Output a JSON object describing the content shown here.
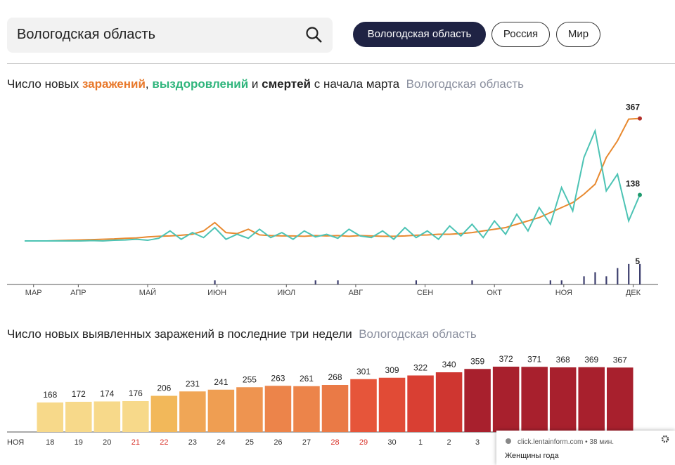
{
  "search": {
    "query": "Вологодская область"
  },
  "tabs": [
    "Вологодская область",
    "Россия",
    "Мир"
  ],
  "chart_data": [
    {
      "type": "line",
      "title_parts": [
        "Число новых ",
        ", ",
        " и ",
        " с начала марта"
      ],
      "subtitle": "Вологодская область",
      "x": [
        0,
        5,
        10,
        15,
        20,
        25,
        30,
        35,
        40,
        45,
        50,
        55,
        60,
        65,
        70,
        75,
        80,
        85,
        90,
        95,
        100,
        105,
        110,
        115,
        120,
        125,
        130,
        135,
        140,
        145,
        150,
        155,
        160,
        165,
        170,
        175,
        180,
        185,
        190,
        195,
        200,
        205,
        210,
        215,
        220,
        225,
        230,
        235,
        240,
        245,
        250,
        255,
        260,
        265,
        270,
        275
      ],
      "xlim": [
        0,
        275
      ],
      "xticks": [
        {
          "value": 4,
          "label": "МАР"
        },
        {
          "value": 24,
          "label": "АПР"
        },
        {
          "value": 55,
          "label": "МАЙ"
        },
        {
          "value": 86,
          "label": "ИЮН"
        },
        {
          "value": 117,
          "label": "ИЮЛ"
        },
        {
          "value": 148,
          "label": "АВГ"
        },
        {
          "value": 179,
          "label": "СЕН"
        },
        {
          "value": 210,
          "label": "ОКТ"
        },
        {
          "value": 241,
          "label": "НОЯ"
        },
        {
          "value": 272,
          "label": "ДЕК"
        }
      ],
      "ylim": [
        0,
        400
      ],
      "y2lim": [
        0,
        6
      ],
      "series": [
        {
          "name": "заражений",
          "color": "#e8892f",
          "values": [
            0,
            0,
            0,
            1,
            2,
            3,
            4,
            5,
            6,
            8,
            9,
            12,
            14,
            15,
            17,
            20,
            30,
            55,
            25,
            22,
            35,
            18,
            16,
            15,
            15,
            14,
            16,
            15,
            16,
            14,
            16,
            15,
            14,
            14,
            15,
            17,
            18,
            20,
            20,
            22,
            25,
            30,
            35,
            40,
            50,
            60,
            70,
            85,
            100,
            115,
            140,
            170,
            250,
            300,
            365,
            367
          ]
        },
        {
          "name": "выздоровлений",
          "color": "#4cc3b4",
          "values": [
            0,
            0,
            0,
            0,
            0,
            0,
            1,
            0,
            2,
            3,
            5,
            2,
            8,
            30,
            5,
            25,
            10,
            40,
            5,
            20,
            8,
            35,
            10,
            25,
            5,
            30,
            12,
            20,
            8,
            35,
            15,
            10,
            30,
            5,
            40,
            10,
            30,
            5,
            45,
            15,
            50,
            10,
            60,
            20,
            80,
            30,
            100,
            50,
            160,
            90,
            250,
            330,
            150,
            200,
            60,
            138
          ]
        },
        {
          "name": "смертей",
          "color": "#3d3f6e",
          "axis": "y2",
          "values": [
            0,
            0,
            0,
            0,
            0,
            0,
            0,
            0,
            0,
            0,
            0,
            0,
            0,
            0,
            0,
            0,
            0,
            1,
            0,
            0,
            0,
            0,
            0,
            0,
            0,
            0,
            1,
            0,
            1,
            0,
            0,
            0,
            0,
            0,
            0,
            1,
            0,
            0,
            0,
            0,
            1,
            0,
            0,
            0,
            0,
            0,
            0,
            1,
            1,
            0,
            2,
            3,
            2,
            4,
            5,
            5
          ]
        }
      ]
    },
    {
      "type": "bar",
      "title": "Число новых выявленных заражений в последние три недели",
      "subtitle": "Вологодская область",
      "axis_label": "НОЯ",
      "categories": [
        "18",
        "19",
        "20",
        "21",
        "22",
        "23",
        "24",
        "25",
        "26",
        "27",
        "28",
        "29",
        "30",
        "1",
        "2",
        "3",
        null,
        null,
        null,
        null,
        null
      ],
      "values": [
        168,
        172,
        174,
        176,
        206,
        231,
        241,
        255,
        263,
        261,
        268,
        301,
        309,
        322,
        340,
        359,
        372,
        371,
        368,
        369,
        367
      ],
      "colors": [
        "#f7d98a",
        "#f7d98a",
        "#f7d98a",
        "#f7d98a",
        "#f2b85a",
        "#f0a656",
        "#ef9e52",
        "#ee9450",
        "#ec844a",
        "#ec844a",
        "#ea7a46",
        "#e6553a",
        "#e14b36",
        "#d93f33",
        "#cf3630",
        "#a8202d",
        "#a8202d",
        "#a8202d",
        "#a8202d",
        "#a8202d",
        "#a8202d"
      ],
      "highlighted": [
        3,
        4,
        10,
        11
      ],
      "highlight_color": "#d9342b",
      "ylim": [
        0,
        380
      ]
    }
  ],
  "notification": {
    "source": "click.lentainform.com • 38 мин.",
    "text": "Женщины года"
  }
}
